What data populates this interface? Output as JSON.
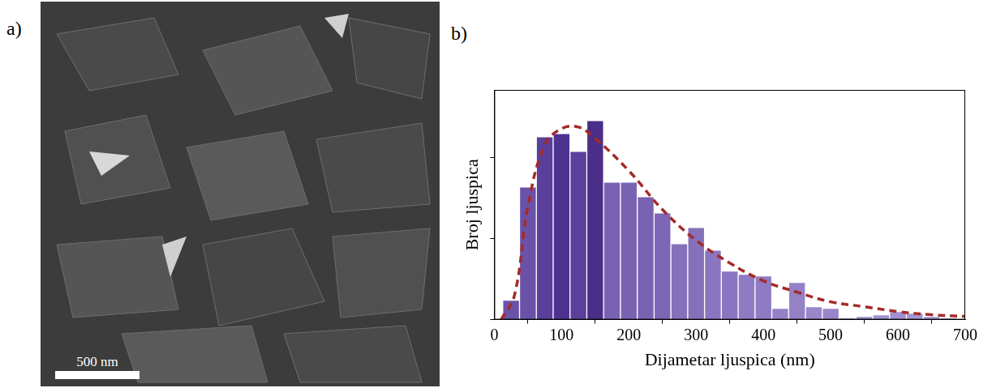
{
  "image_panel": {
    "panel_label": "a)",
    "scale_bar": "500 nm"
  },
  "chart_data": {
    "type": "histogram",
    "panel_label": "b)",
    "x_label": "Dijametar ljuspica (nm)",
    "y_label": "Broj ljuspica",
    "bins": [
      12.5,
      37.5,
      62.5,
      87.5,
      112.5,
      137.5,
      162.5,
      187.5,
      212.5,
      237.5,
      262.5,
      287.5,
      312.5,
      337.5,
      362.5,
      387.5,
      412.5,
      437.5,
      462.5,
      487.5,
      512.5,
      537.5,
      562.5,
      587.5,
      612.5,
      637.5,
      662.5,
      687.5
    ],
    "values": [
      12,
      82,
      113,
      115,
      104,
      123,
      85,
      85,
      76,
      66,
      47,
      57,
      43,
      30,
      28,
      27,
      7,
      23,
      8,
      7,
      1,
      2,
      3,
      5,
      4,
      2,
      1
    ],
    "colors": [
      "#6a52a8",
      "#6a52a8",
      "#5a3f9c",
      "#4e3290",
      "#5a3f9c",
      "#4a2e88",
      "#7a62b3",
      "#7a62b3",
      "#7a62b3",
      "#7d66b5",
      "#8570ba",
      "#8570ba",
      "#8a75c0",
      "#8a75c0",
      "#8f7bc3",
      "#8f7bc3",
      "#9481c6",
      "#9481c6",
      "#9886c9",
      "#9886c9",
      "#9c8bcc",
      "#9c8bcc",
      "#a090cf",
      "#a090cf",
      "#a395d1",
      "#a395d1",
      "#a699d3"
    ],
    "xlim": [
      0,
      700
    ],
    "xticks": [
      0,
      100,
      200,
      300,
      400,
      500,
      600,
      700
    ],
    "ylim": [
      0,
      142
    ],
    "yticks": [
      0,
      50,
      100
    ],
    "tick_labels": "x",
    "grid": false,
    "series": [
      {
        "type": "line",
        "color": "#a52a2a",
        "line_style": "dashed",
        "x": [
          10,
          30,
          50,
          75,
          100,
          125,
          150,
          200,
          250,
          300,
          350,
          400,
          450,
          500,
          550,
          600,
          650,
          700
        ],
        "values": [
          0,
          15,
          70,
          108,
          118,
          119,
          112,
          92,
          68,
          49,
          35,
          24,
          17,
          11,
          8,
          5,
          3,
          2
        ]
      }
    ]
  }
}
